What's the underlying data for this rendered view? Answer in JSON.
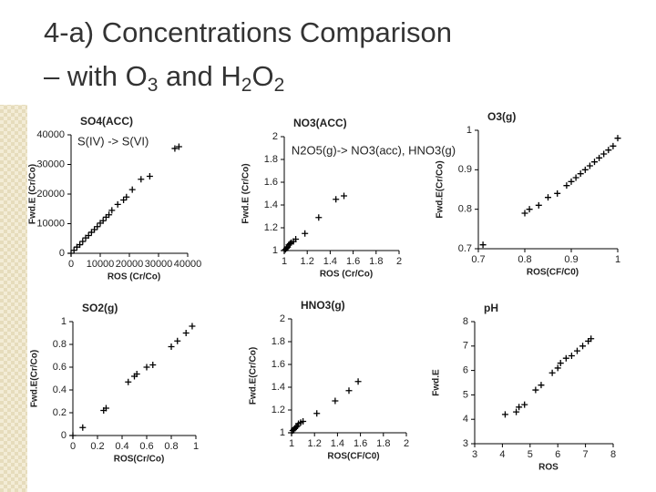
{
  "slide": {
    "title": [
      "4-a) Concentrations Comparison",
      "– with O",
      "3",
      " and H",
      "2",
      "O",
      "2"
    ]
  },
  "chart_data": [
    {
      "type": "scatter",
      "title": "SO4(ACC)",
      "xlabel": "ROS (Cr/Co)",
      "ylabel": "Fwd.E (Cr/Co)",
      "annotation": "S(IV) -> S(VI)",
      "xlim": [
        0,
        40000
      ],
      "ylim": [
        0,
        40000
      ],
      "xticks": [
        0,
        10000,
        20000,
        30000,
        40000
      ],
      "yticks": [
        0,
        10000,
        20000,
        30000,
        40000
      ],
      "x": [
        0,
        1000,
        2000,
        3000,
        4000,
        5000,
        6000,
        7000,
        8000,
        9000,
        10000,
        11000,
        12000,
        13000,
        14000,
        16000,
        18000,
        19000,
        21000,
        24000,
        27000,
        35600,
        37000
      ],
      "values": [
        0,
        1000,
        2100,
        2900,
        4000,
        5200,
        6000,
        7100,
        8000,
        9000,
        10200,
        11000,
        12200,
        13000,
        14500,
        16500,
        18000,
        19000,
        21500,
        25000,
        26000,
        35400,
        36000
      ],
      "color": "#000000"
    },
    {
      "type": "scatter",
      "title": "NO3(ACC)",
      "xlabel": "ROS (Cr/Co)",
      "ylabel": "Fwd.E (Cr/Co)",
      "annotation": "N2O5(g)-> NO3(acc), HNO3(g)",
      "xlim": [
        1,
        2
      ],
      "ylim": [
        1,
        2
      ],
      "xticks": [
        1,
        1.2,
        1.4,
        1.6,
        1.8,
        2
      ],
      "yticks": [
        1,
        1.2,
        1.4,
        1.6,
        1.8,
        2
      ],
      "x": [
        1,
        1.01,
        1.02,
        1.03,
        1.04,
        1.05,
        1.06,
        1.08,
        1.1,
        1.18,
        1.3,
        1.45,
        1.52
      ],
      "values": [
        1,
        1.01,
        1.02,
        1.03,
        1.05,
        1.06,
        1.07,
        1.08,
        1.1,
        1.15,
        1.29,
        1.45,
        1.48
      ],
      "color": "#000000"
    },
    {
      "type": "scatter",
      "title": "O3(g)",
      "xlabel": "ROS(CF/C0)",
      "ylabel": "Fwd.E(Cr/Co)",
      "xlim": [
        0.7,
        1
      ],
      "ylim": [
        0.7,
        1
      ],
      "xticks": [
        0.7,
        0.8,
        0.9,
        1
      ],
      "yticks": [
        0.7,
        0.8,
        0.9,
        1
      ],
      "x": [
        0.71,
        0.8,
        0.81,
        0.83,
        0.85,
        0.87,
        0.89,
        0.9,
        0.91,
        0.92,
        0.93,
        0.94,
        0.95,
        0.96,
        0.97,
        0.98,
        0.99,
        1
      ],
      "values": [
        0.71,
        0.79,
        0.8,
        0.81,
        0.83,
        0.84,
        0.86,
        0.87,
        0.88,
        0.89,
        0.9,
        0.91,
        0.92,
        0.93,
        0.94,
        0.95,
        0.96,
        0.98
      ],
      "color": "#000000"
    },
    {
      "type": "scatter",
      "title": "SO2(g)",
      "xlabel": "ROS(Cr/Co)",
      "ylabel": "Fwd.E(Cr/Co)",
      "xlim": [
        0,
        1
      ],
      "ylim": [
        0,
        1
      ],
      "xticks": [
        0,
        0.2,
        0.4,
        0.6,
        0.8,
        1
      ],
      "yticks": [
        0,
        0.2,
        0.4,
        0.6,
        0.8,
        1
      ],
      "x": [
        0,
        0.08,
        0.25,
        0.27,
        0.45,
        0.5,
        0.52,
        0.6,
        0.65,
        0.8,
        0.85,
        0.92,
        0.97
      ],
      "values": [
        0,
        0.07,
        0.22,
        0.24,
        0.47,
        0.52,
        0.54,
        0.6,
        0.62,
        0.78,
        0.83,
        0.9,
        0.96
      ],
      "color": "#000000"
    },
    {
      "type": "scatter",
      "title": "HNO3(g)",
      "xlabel": "ROS(CF/C0)",
      "ylabel": "Fwd.E(Cr/Co)",
      "xlim": [
        1,
        2
      ],
      "ylim": [
        1,
        2
      ],
      "xticks": [
        1,
        1.2,
        1.4,
        1.6,
        1.8,
        2
      ],
      "yticks": [
        1,
        1.2,
        1.4,
        1.6,
        1.8,
        2
      ],
      "x": [
        1,
        1.01,
        1.02,
        1.03,
        1.04,
        1.05,
        1.06,
        1.08,
        1.1,
        1.22,
        1.38,
        1.5,
        1.58
      ],
      "values": [
        1,
        1.02,
        1.03,
        1.04,
        1.05,
        1.06,
        1.08,
        1.09,
        1.1,
        1.17,
        1.28,
        1.37,
        1.45
      ],
      "color": "#000000"
    },
    {
      "type": "scatter",
      "title": "pH",
      "xlabel": "ROS",
      "ylabel": "Fwd.E",
      "xlim": [
        3,
        8
      ],
      "ylim": [
        3,
        8
      ],
      "xticks": [
        3,
        4,
        5,
        6,
        7,
        8
      ],
      "yticks": [
        3,
        4,
        5,
        6,
        7,
        8
      ],
      "x": [
        4.1,
        4.5,
        4.6,
        4.8,
        5.2,
        5.4,
        5.8,
        6.0,
        6.1,
        6.3,
        6.5,
        6.7,
        6.9,
        7.1,
        7.2
      ],
      "values": [
        4.2,
        4.3,
        4.5,
        4.6,
        5.2,
        5.4,
        5.9,
        6.1,
        6.3,
        6.5,
        6.6,
        6.8,
        7.0,
        7.2,
        7.3
      ],
      "color": "#000000"
    }
  ]
}
